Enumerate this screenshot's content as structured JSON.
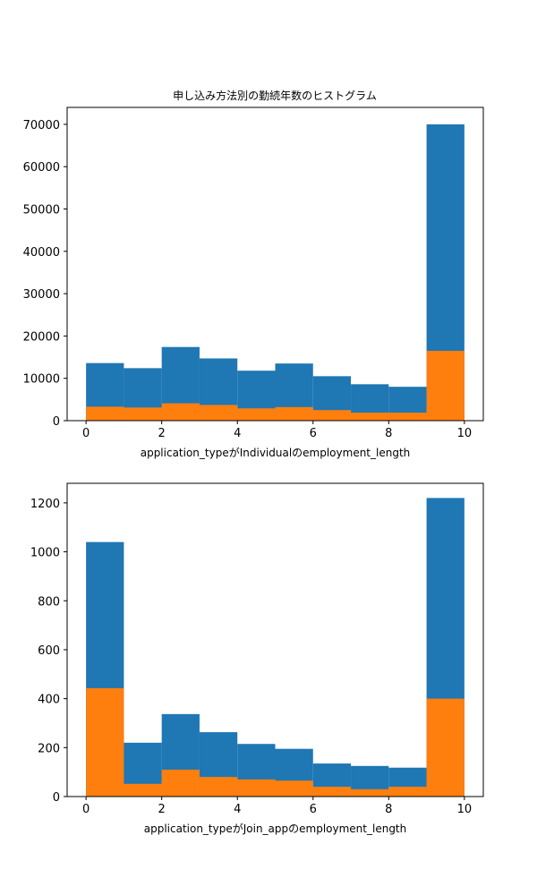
{
  "figure": {
    "title": "申し込み方法別の勤続年数のヒストグラム"
  },
  "chart_data": [
    {
      "type": "bar",
      "stacked": "overlay",
      "xlabel": "application_typeがIndividualのemployment_length",
      "ylabel": "",
      "xlim": [
        -0.5,
        10.5
      ],
      "ylim": [
        0,
        74000
      ],
      "xticks": [
        0,
        2,
        4,
        6,
        8,
        10
      ],
      "yticks": [
        0,
        10000,
        20000,
        30000,
        40000,
        50000,
        60000,
        70000
      ],
      "bin_edges": [
        0,
        1,
        2,
        3,
        4,
        5,
        6,
        7,
        8,
        9,
        10
      ],
      "colors": [
        "#1f77b4",
        "#ff7f0e"
      ],
      "series": [
        {
          "values": [
            13600,
            12400,
            17400,
            14700,
            11800,
            13500,
            10500,
            8600,
            8000,
            70000
          ]
        },
        {
          "values": [
            3300,
            3100,
            4100,
            3700,
            2900,
            3200,
            2500,
            1900,
            1900,
            16500
          ]
        }
      ],
      "grid": false,
      "legend": "none"
    },
    {
      "type": "bar",
      "stacked": "overlay",
      "xlabel": "application_typeがJoin_appのemployment_length",
      "ylabel": "",
      "xlim": [
        -0.5,
        10.5
      ],
      "ylim": [
        0,
        1280
      ],
      "xticks": [
        0,
        2,
        4,
        6,
        8,
        10
      ],
      "yticks": [
        0,
        200,
        400,
        600,
        800,
        1000,
        1200
      ],
      "bin_edges": [
        0,
        1,
        2,
        3,
        4,
        5,
        6,
        7,
        8,
        9,
        10
      ],
      "colors": [
        "#1f77b4",
        "#ff7f0e"
      ],
      "series": [
        {
          "values": [
            1040,
            220,
            337,
            263,
            215,
            195,
            135,
            125,
            118,
            1220
          ]
        },
        {
          "values": [
            443,
            52,
            110,
            80,
            70,
            65,
            40,
            30,
            40,
            400
          ]
        }
      ],
      "grid": false,
      "legend": "none"
    }
  ]
}
